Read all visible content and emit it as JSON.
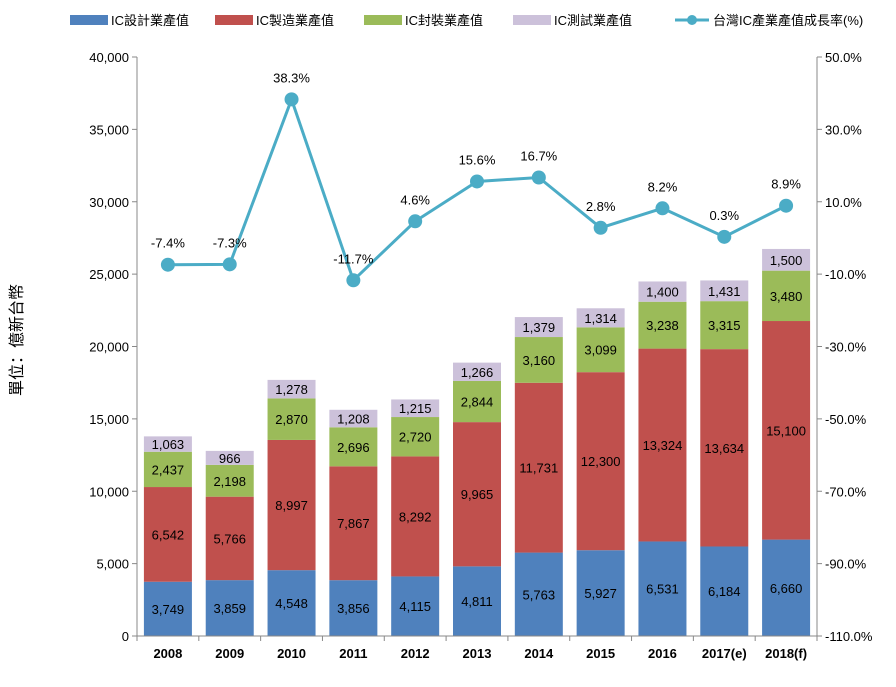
{
  "chart_data": {
    "type": "bar",
    "stacked": true,
    "categories": [
      "2008",
      "2009",
      "2010",
      "2011",
      "2012",
      "2013",
      "2014",
      "2015",
      "2016",
      "2017(e)",
      "2018(f)"
    ],
    "ylabel": "單位：億新台幣",
    "ylim": [
      0,
      40000
    ],
    "y_ticks": [
      "0",
      "5,000",
      "10,000",
      "15,000",
      "20,000",
      "25,000",
      "30,000",
      "35,000",
      "40,000"
    ],
    "y2lim": [
      -110,
      50
    ],
    "y2_ticks": [
      "-110.0%",
      "-90.0%",
      "-70.0%",
      "-50.0%",
      "-30.0%",
      "-10.0%",
      "10.0%",
      "30.0%",
      "50.0%"
    ],
    "grid": false,
    "legend_position": "top",
    "series": [
      {
        "name": "IC設計業產值",
        "color": "#4F81BD",
        "values": [
          3749,
          3859,
          4548,
          3856,
          4115,
          4811,
          5763,
          5927,
          6531,
          6184,
          6660
        ],
        "labels": [
          "3,749",
          "3,859",
          "4,548",
          "3,856",
          "4,115",
          "4,811",
          "5,763",
          "5,927",
          "6,531",
          "6,184",
          "6,660"
        ]
      },
      {
        "name": "IC製造業產值",
        "color": "#C0504D",
        "values": [
          6542,
          5766,
          8997,
          7867,
          8292,
          9965,
          11731,
          12300,
          13324,
          13634,
          15100
        ],
        "labels": [
          "6,542",
          "5,766",
          "8,997",
          "7,867",
          "8,292",
          "9,965",
          "11,731",
          "12,300",
          "13,324",
          "13,634",
          "15,100"
        ]
      },
      {
        "name": "IC封裝業產值",
        "color": "#9BBB59",
        "values": [
          2437,
          2198,
          2870,
          2696,
          2720,
          2844,
          3160,
          3099,
          3238,
          3315,
          3480
        ],
        "labels": [
          "2,437",
          "2,198",
          "2,870",
          "2,696",
          "2,720",
          "2,844",
          "3,160",
          "3,099",
          "3,238",
          "3,315",
          "3,480"
        ]
      },
      {
        "name": "IC測試業產值",
        "color": "#CCC1DA",
        "values": [
          1063,
          966,
          1278,
          1208,
          1215,
          1266,
          1379,
          1314,
          1400,
          1431,
          1500
        ],
        "labels": [
          "1,063",
          "966",
          "1,278",
          "1,208",
          "1,215",
          "1,266",
          "1,379",
          "1,314",
          "1,400",
          "1,431",
          "1,500"
        ]
      }
    ],
    "line_series": {
      "name": "台灣IC產業產值成長率(%)",
      "color": "#4BACC6",
      "axis": "right",
      "values": [
        -7.4,
        -7.3,
        38.3,
        -11.7,
        4.6,
        15.6,
        16.7,
        2.8,
        8.2,
        0.3,
        8.9
      ],
      "labels": [
        "-7.4%",
        "-7.3%",
        "38.3%",
        "-11.7%",
        "4.6%",
        "15.6%",
        "16.7%",
        "2.8%",
        "8.2%",
        "0.3%",
        "8.9%"
      ]
    }
  }
}
